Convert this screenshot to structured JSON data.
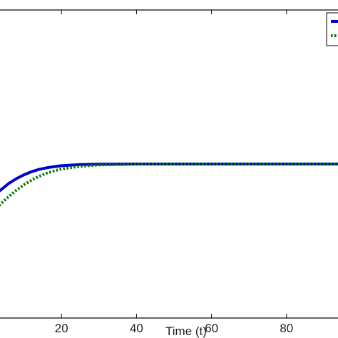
{
  "chart_data": {
    "type": "line",
    "xlabel": "Time (t)",
    "ylabel": "",
    "title": "",
    "xlim": [
      0,
      100
    ],
    "x_ticks": [
      20,
      40,
      60,
      80
    ],
    "x_tick_labels": [
      "20",
      "40",
      "60",
      "80"
    ],
    "grid": false,
    "legend_placement": "top-right",
    "series": [
      {
        "color": "#0000cc",
        "style": "solid",
        "x": [
          0,
          2,
          4,
          6,
          8,
          10,
          12,
          14,
          16,
          18,
          20,
          25,
          30,
          40,
          50,
          60,
          70,
          80,
          90,
          100
        ],
        "y": [
          0.953,
          0.96,
          0.967,
          0.975,
          0.981,
          0.986,
          0.99,
          0.993,
          0.995,
          0.9965,
          0.9978,
          0.9993,
          0.9998,
          1.0,
          1.0,
          1.0,
          1.0,
          1.0,
          1.0,
          1.0
        ]
      },
      {
        "color": "#007700",
        "style": "dotted",
        "x": [
          0,
          2,
          4,
          6,
          8,
          10,
          12,
          14,
          16,
          18,
          20,
          25,
          30,
          40,
          50,
          60,
          70,
          80,
          90,
          100
        ],
        "y": [
          0.93,
          0.94,
          0.949,
          0.958,
          0.966,
          0.973,
          0.979,
          0.984,
          0.988,
          0.991,
          0.9935,
          0.997,
          0.9988,
          1.0,
          1.0,
          1.0,
          1.0,
          1.0,
          1.0,
          1.0
        ]
      }
    ]
  }
}
